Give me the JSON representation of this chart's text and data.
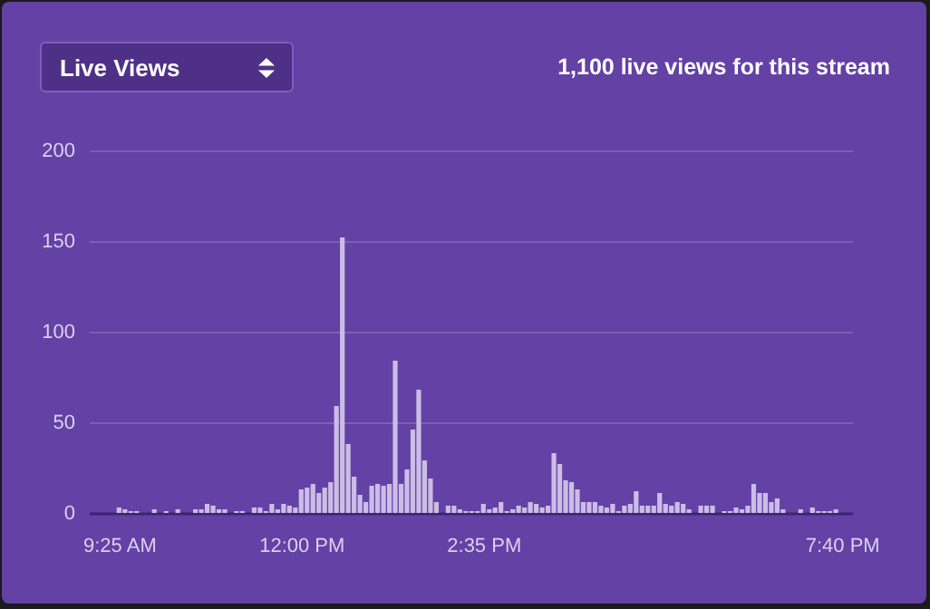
{
  "chart_data": {
    "type": "bar",
    "title": "1,100 live views for this stream",
    "annotations": [
      "Live Views"
    ],
    "x": [
      9.4167,
      9.5,
      9.5833,
      9.6667,
      9.9167,
      10.0833,
      10.25,
      10.5,
      10.5833,
      10.6667,
      10.75,
      10.8333,
      10.9167,
      11.0833,
      11.1667,
      11.3333,
      11.4167,
      11.5,
      11.5833,
      11.6667,
      11.75,
      11.8333,
      11.9167,
      12,
      12.0833,
      12.1667,
      12.25,
      12.3333,
      12.4167,
      12.5,
      12.5833,
      12.6667,
      12.75,
      12.8333,
      12.9167,
      13,
      13.0833,
      13.1667,
      13.25,
      13.3333,
      13.4167,
      13.5,
      13.5833,
      13.6667,
      13.75,
      13.8333,
      13.9167,
      14.0833,
      14.1667,
      14.25,
      14.3333,
      14.4167,
      14.5,
      14.5833,
      14.6667,
      14.75,
      14.8333,
      14.9167,
      15,
      15.0833,
      15.1667,
      15.25,
      15.3333,
      15.4167,
      15.5,
      15.5833,
      15.6667,
      15.75,
      15.8333,
      15.9167,
      16,
      16.0833,
      16.1667,
      16.25,
      16.3333,
      16.4167,
      16.5,
      16.5833,
      16.6667,
      16.75,
      16.8333,
      16.9167,
      17,
      17.0833,
      17.1667,
      17.25,
      17.3333,
      17.4167,
      17.5,
      17.6667,
      17.75,
      17.8333,
      18,
      18.0833,
      18.1667,
      18.25,
      18.3333,
      18.4167,
      18.5,
      18.5833,
      18.6667,
      18.75,
      18.8333,
      19.0833,
      19.25,
      19.3333,
      19.4167,
      19.5,
      19.5833
    ],
    "series": [
      {
        "color": "#cbbde6",
        "values": [
          3,
          2,
          1,
          1,
          2,
          1,
          2,
          2,
          2,
          5,
          4,
          2,
          2,
          1,
          1,
          3,
          3,
          1,
          5,
          2,
          5,
          4,
          3,
          13,
          14,
          16,
          11,
          14,
          17,
          59,
          152,
          38,
          20,
          10,
          6,
          15,
          16,
          15,
          16,
          84,
          16,
          24,
          46,
          68,
          29,
          19,
          6,
          4,
          4,
          2,
          1,
          1,
          1,
          5,
          2,
          3,
          6,
          1,
          2,
          4,
          3,
          6,
          5,
          3,
          4,
          33,
          27,
          18,
          17,
          13,
          6,
          6,
          6,
          4,
          3,
          5,
          1,
          4,
          5,
          12,
          4,
          4,
          4,
          11,
          5,
          4,
          6,
          5,
          2,
          4,
          4,
          4,
          1,
          1,
          3,
          2,
          4,
          16,
          11,
          11,
          6,
          8,
          2,
          2,
          3,
          1,
          1,
          1,
          2
        ]
      }
    ],
    "xlim": [
      9.1167,
      19.6833
    ],
    "xticks": [
      {
        "value": 9.4167,
        "label": "9:25 AM"
      },
      {
        "value": 12,
        "label": "12:00 PM"
      },
      {
        "value": 14.5833,
        "label": "2:35 PM"
      },
      {
        "value": 19.6667,
        "label": "7:40 PM"
      }
    ],
    "ylim": [
      0,
      200
    ],
    "yticks": [
      0,
      50,
      100,
      150,
      200
    ],
    "grid": "y"
  }
}
